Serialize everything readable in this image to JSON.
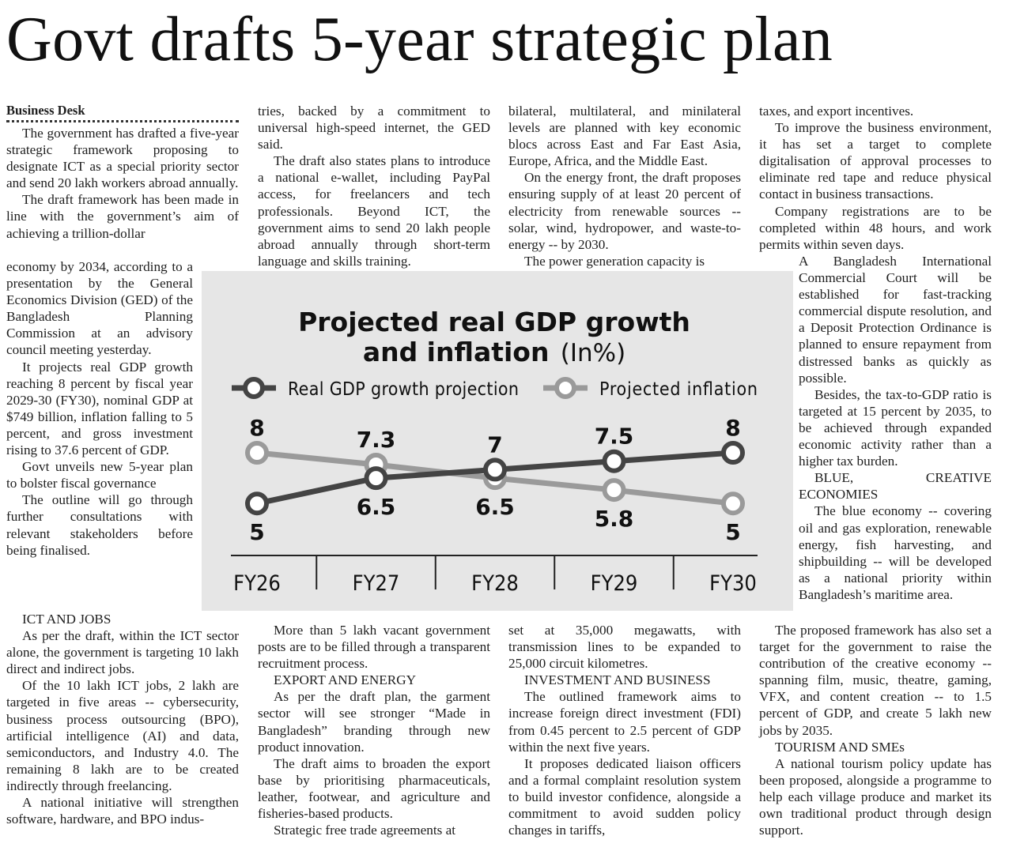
{
  "headline": "Govt drafts 5-year strategic plan",
  "byline": "Business Desk",
  "columns": {
    "col1a": [
      {
        "text": "The government has drafted a five-year strategic framework proposing to designate ICT as a special priority sector and send 20 lakh workers abroad annually."
      },
      {
        "text": "The draft framework has been made in line with the government’s aim of achieving a trillion-dollar"
      }
    ],
    "col1b": [
      {
        "text": "economy by 2034, according to a presentation by the General Economics Division (GED) of the Bangladesh Planning Commission at an advisory council meeting yesterday.",
        "cont": true
      },
      {
        "text": "It projects real GDP growth reaching 8 percent by fiscal year 2029-30 (FY30), nominal GDP at $749 billion, inflation falling to 5 percent, and gross investment rising to 37.6 percent of GDP."
      },
      {
        "text": "Govt unveils new 5-year plan to bolster fiscal governance"
      },
      {
        "text": "The outline will go through further consultations with relevant stakeholders before being finalised."
      }
    ],
    "col1c": [
      {
        "text": "ICT AND JOBS",
        "sub": true
      },
      {
        "text": "As per the draft, within the ICT sector alone, the government is targeting 10 lakh direct and indirect jobs."
      },
      {
        "text": "Of the 10 lakh ICT jobs, 2 lakh are targeted in five areas -- cybersecurity, business process outsourcing (BPO), artificial intelligence (AI) and data, semiconductors, and Industry 4.0. The remaining 8 lakh are to be created indirectly through freelancing."
      },
      {
        "text": "A national initiative will strengthen software, hardware, and BPO indus-"
      }
    ],
    "col2a": [
      {
        "text": "tries, backed by a commitment to universal high-speed internet, the GED said.",
        "cont": true
      },
      {
        "text": "The draft also states plans to introduce a national e-wallet, including PayPal access, for freelancers and tech professionals. Beyond ICT, the government aims to send 20 lakh people abroad annually through short-term language and skills training."
      }
    ],
    "col2b": [
      {
        "text": "More than 5 lakh vacant government posts are to be filled through a transparent recruitment process."
      },
      {
        "text": "EXPORT AND ENERGY",
        "sub": true
      },
      {
        "text": "As per the draft plan, the garment sector will see stronger “Made in Bangladesh” branding through new product innovation."
      },
      {
        "text": "The draft aims to broaden the export base by prioritising pharmaceuticals, leather, footwear, and agriculture and fisheries-based products."
      },
      {
        "text": "Strategic free trade agreements at"
      }
    ],
    "col3a": [
      {
        "text": "bilateral, multilateral, and minilateral levels are planned with key economic blocs across East and Far East Asia, Europe, Africa, and the Middle East.",
        "cont": true
      },
      {
        "text": "On the energy front, the draft proposes ensuring supply of at least 20 percent of electricity from renewable sources -- solar, wind, hydropower, and waste-to-energy -- by 2030."
      },
      {
        "text": "The power generation capacity is"
      }
    ],
    "col3b": [
      {
        "text": "set at 35,000 megawatts, with transmission lines to be expanded to 25,000 circuit kilometres.",
        "cont": true
      },
      {
        "text": "INVESTMENT AND BUSINESS",
        "sub": true
      },
      {
        "text": "The outlined framework aims to increase foreign direct investment (FDI) from 0.45 percent to 2.5 percent of GDP within the next five years."
      },
      {
        "text": "It proposes dedicated liaison officers and a formal complaint resolution system to build investor confidence, alongside a commitment to avoid sudden policy changes in tariffs,"
      }
    ],
    "col4a": [
      {
        "text": "taxes, and export incentives.",
        "cont": true
      },
      {
        "text": "To improve the business environment, it has set a target to complete digitalisation of approval processes to eliminate red tape and reduce physical contact in business transactions."
      },
      {
        "text": "Company registrations are to be completed within 48 hours, and work permits within seven days."
      }
    ],
    "col4b": [
      {
        "text": "A Bangladesh International Commercial Court will be established for fast-tracking commercial dispute resolution, and a Deposit Protection Ordinance is planned to ensure repayment from distressed banks as quickly as possible.",
        "cont": true
      },
      {
        "text": "Besides, the tax-to-GDP ratio is targeted at 15 percent by 2035, to be achieved through expanded economic activity rather than a higher tax burden."
      },
      {
        "text": "BLUE, CREATIVE ECONOMIES"
      },
      {
        "text": "The blue economy -- covering oil and gas exploration, renewable energy, fish harvesting, and shipbuilding -- will be developed as a national priority within Bangladesh’s maritime area."
      }
    ],
    "col4c": [
      {
        "text": "The proposed framework has also set a target for the government to raise the contribution of the creative economy -- spanning film, music, theatre, gaming, VFX, and content creation -- to 1.5 percent of GDP, and create 5 lakh new jobs by 2035."
      },
      {
        "text": "TOURISM AND SMEs",
        "sub": true
      },
      {
        "text": "A national tourism policy update has been proposed, alongside a programme to help each village produce and market its own traditional product through design support."
      }
    ]
  },
  "chart_data": {
    "type": "line",
    "title_line1": "Projected real GDP growth",
    "title_line2": "and inflation",
    "title_unit": "(In%)",
    "categories": [
      "FY26",
      "FY27",
      "FY28",
      "FY29",
      "FY30"
    ],
    "series": [
      {
        "name": "Real GDP growth projection",
        "values": [
          5,
          6.5,
          7,
          7.5,
          8
        ],
        "color": "#444444",
        "labels": [
          "5",
          "6.5",
          "7",
          "7.5",
          "8"
        ]
      },
      {
        "name": "Projected inflation",
        "values": [
          8,
          7.3,
          6.5,
          5.8,
          5
        ],
        "color": "#9a9a9a",
        "labels": [
          "8",
          "7.3",
          "6.5",
          "5.8",
          "5"
        ]
      }
    ],
    "ylim": [
      4,
      9
    ],
    "grid": false,
    "legend": "top",
    "background": "#e6e6e6"
  }
}
